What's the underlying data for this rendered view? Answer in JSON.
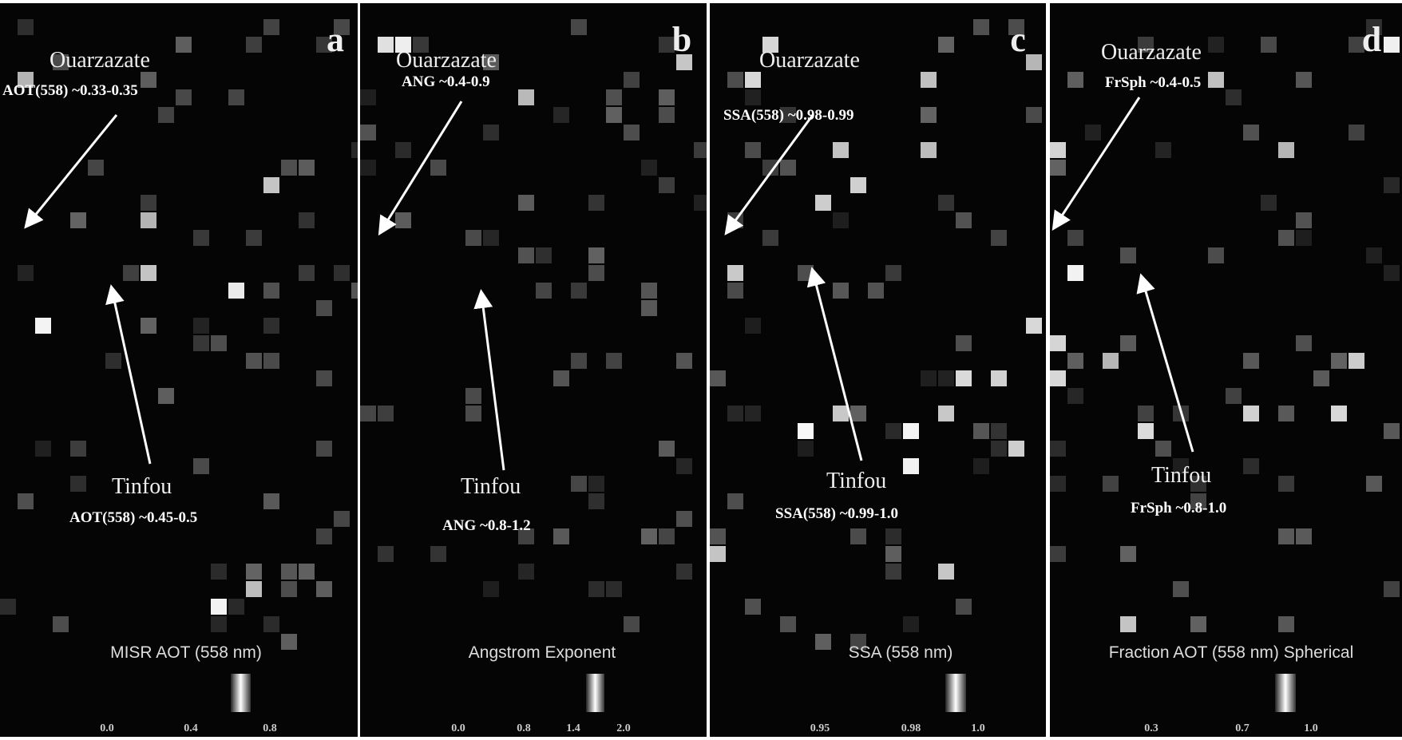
{
  "panels": [
    {
      "letter": "a",
      "site1": "Ouarzazate",
      "site1_label": "AOT(558) ~0.33-0.35",
      "site2": "Tinfou",
      "site2_label": "AOT(558) ~0.45-0.5",
      "colorbar_title": "MISR AOT (558 nm)",
      "colorbar_ticks": [
        "0.0",
        "0.4",
        "0.8"
      ]
    },
    {
      "letter": "b",
      "site1": "Ouarzazate",
      "site1_label": "ANG ~0.4-0.9",
      "site2": "Tinfou",
      "site2_label": "ANG ~0.8-1.2",
      "colorbar_title": "Angstrom Exponent",
      "colorbar_ticks": [
        "0.0",
        "0.8",
        "1.4",
        "2.0"
      ]
    },
    {
      "letter": "c",
      "site1": "Ouarzazate",
      "site1_label": "SSA(558) ~0.98-0.99",
      "site2": "Tinfou",
      "site2_label": "SSA(558) ~0.99-1.0",
      "colorbar_title": "SSA (558 nm)",
      "colorbar_ticks": [
        "0.95",
        "0.98",
        "1.0"
      ]
    },
    {
      "letter": "d",
      "site1": "Ouarzazate",
      "site1_label": "FrSph ~0.4-0.5",
      "site2": "Tinfou",
      "site2_label": "FrSph ~0.8-1.0",
      "colorbar_title": "Fraction AOT (558 nm) Spherical",
      "colorbar_ticks": [
        "0.3",
        "0.7",
        "1.0"
      ]
    }
  ]
}
